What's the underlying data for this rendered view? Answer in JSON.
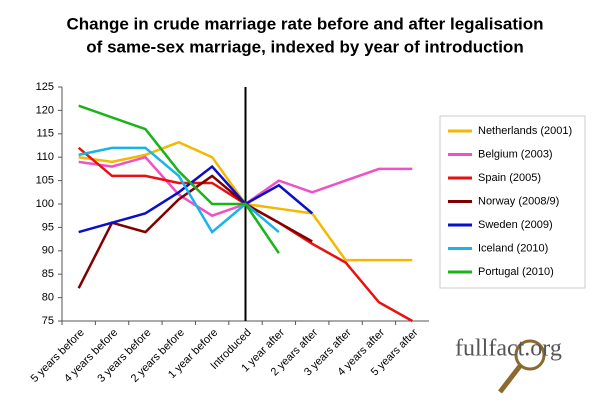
{
  "chart_data": {
    "type": "line",
    "title": [
      "Change in crude marriage rate before and after legalisation",
      "of same-sex marriage, indexed by year of introduction"
    ],
    "categories": [
      "5 years before",
      "4 years before",
      "3 years before",
      "2 years before",
      "1 year before",
      "Introduced",
      "1 year after",
      "2 years after",
      "3 years after",
      "4 years after",
      "5 years after"
    ],
    "series": [
      {
        "name": "Netherlands (2001)",
        "color": "#f5b800",
        "values": [
          110,
          109,
          110.5,
          113.2,
          110,
          100,
          99,
          98,
          88,
          88,
          88
        ]
      },
      {
        "name": "Belgium (2003)",
        "color": "#f050c8",
        "values": [
          109,
          108,
          110,
          102,
          97.5,
          100,
          105,
          102.5,
          105,
          107.5,
          107.5
        ]
      },
      {
        "name": "Spain (2005)",
        "color": "#e81010",
        "values": [
          112,
          106,
          106,
          104.5,
          104.5,
          100,
          96,
          91.5,
          87.5,
          79,
          75
        ]
      },
      {
        "name": "Norway (2008/9)",
        "color": "#800000",
        "values": [
          82,
          96,
          94,
          101,
          106,
          100,
          96,
          92,
          null,
          null,
          null
        ]
      },
      {
        "name": "Sweden (2009)",
        "color": "#0a10c8",
        "values": [
          94,
          96,
          98,
          102.5,
          108,
          100,
          104,
          98,
          null,
          null,
          null
        ]
      },
      {
        "name": "Iceland (2010)",
        "color": "#18b4e8",
        "values": [
          110.5,
          112,
          112,
          106,
          94,
          100,
          94,
          null,
          null,
          null,
          null
        ]
      },
      {
        "name": "Portugal (2010)",
        "color": "#18b418",
        "values": [
          121,
          118.5,
          116,
          107,
          100,
          100,
          89.5,
          null,
          null,
          null,
          null
        ]
      }
    ],
    "ylim": [
      75,
      125
    ],
    "yticks": [
      75,
      80,
      85,
      90,
      95,
      100,
      105,
      110,
      115,
      120,
      125
    ],
    "marker_category": 5,
    "logo": "fullfact.org"
  }
}
